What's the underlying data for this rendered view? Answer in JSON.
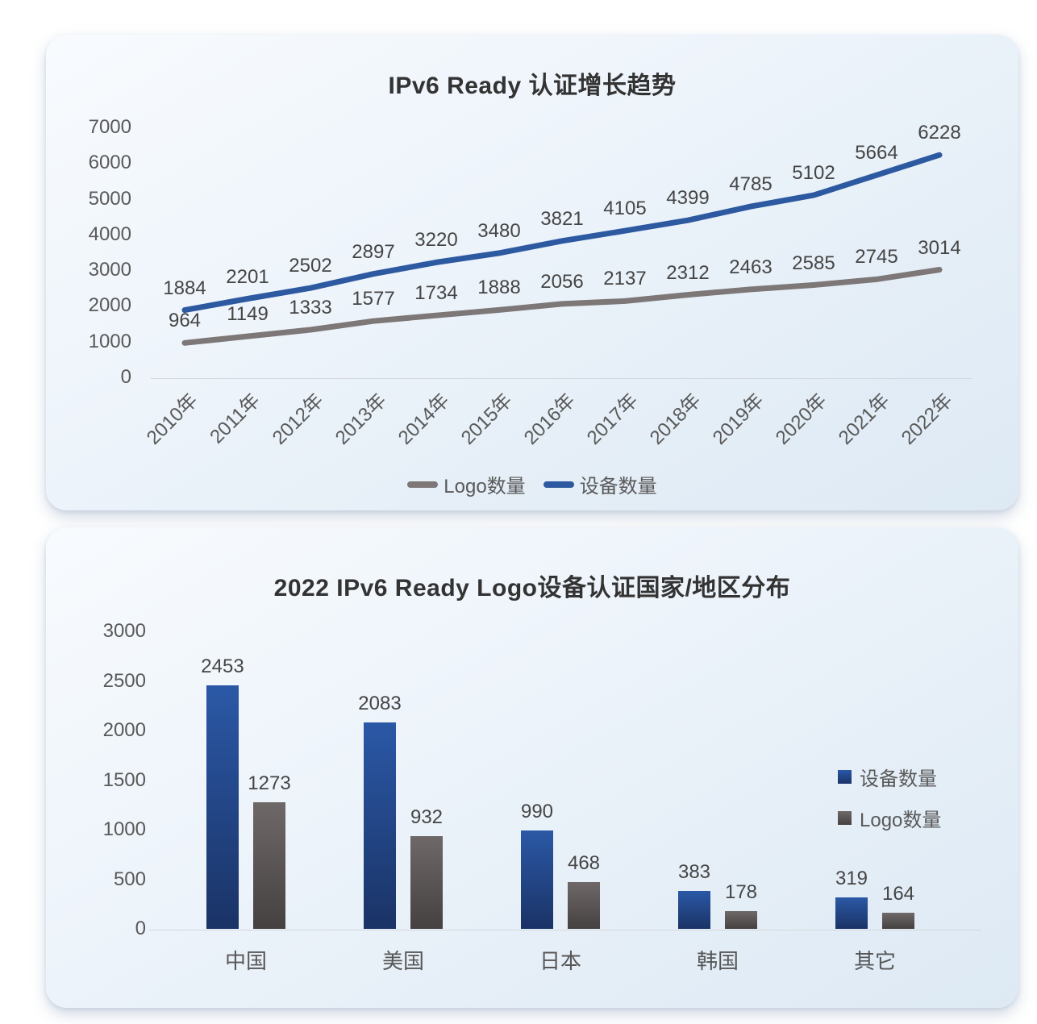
{
  "chart_data": [
    {
      "type": "line",
      "title": "IPv6 Ready 认证增长趋势",
      "categories": [
        "2010年",
        "2011年",
        "2012年",
        "2013年",
        "2014年",
        "2015年",
        "2016年",
        "2017年",
        "2018年",
        "2019年",
        "2020年",
        "2021年",
        "2022年"
      ],
      "series": [
        {
          "name": "Logo数量",
          "color": "#7d7777",
          "values": [
            964,
            1149,
            1333,
            1577,
            1734,
            1888,
            2056,
            2137,
            2312,
            2463,
            2585,
            2745,
            3014
          ]
        },
        {
          "name": "设备数量",
          "color": "#2d59a0",
          "values": [
            1884,
            2201,
            2502,
            2897,
            3220,
            3480,
            3821,
            4105,
            4399,
            4785,
            5102,
            5664,
            6228
          ]
        }
      ],
      "ylim": [
        0,
        7000
      ],
      "yticks": [
        0,
        1000,
        2000,
        3000,
        4000,
        5000,
        6000,
        7000
      ],
      "grid": false,
      "data_labels": true,
      "legend_position": "bottom",
      "x_label_rotation": -45
    },
    {
      "type": "bar",
      "title": "2022 IPv6 Ready Logo设备认证国家/地区分布",
      "categories": [
        "中国",
        "美国",
        "日本",
        "韩国",
        "其它"
      ],
      "series": [
        {
          "name": "设备数量",
          "color_top": "#2b58a6",
          "color_bottom": "#1a3366",
          "values": [
            2453,
            2083,
            990,
            383,
            319
          ]
        },
        {
          "name": "Logo数量",
          "color_top": "#6e6868",
          "color_bottom": "#464141",
          "values": [
            1273,
            932,
            468,
            178,
            164
          ]
        }
      ],
      "ylim": [
        0,
        3000
      ],
      "yticks": [
        0,
        500,
        1000,
        1500,
        2000,
        2500,
        3000
      ],
      "grid": false,
      "data_labels": true,
      "legend_position": "right"
    }
  ]
}
